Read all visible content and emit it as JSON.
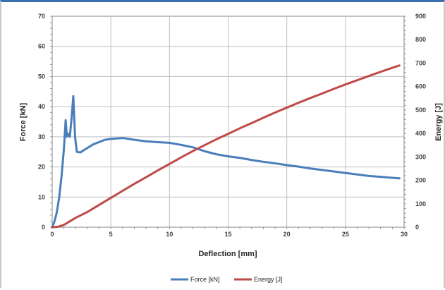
{
  "chart_data": {
    "type": "line",
    "xlabel": "Deflection  [mm]",
    "ylabel_left": "Force  [kN]",
    "ylabel_right": "Energy  [J]",
    "xlim": [
      0,
      30
    ],
    "ylim_left": [
      0,
      70
    ],
    "ylim_right": [
      0,
      900
    ],
    "x_ticks": [
      "0",
      "5",
      "10",
      "15",
      "20",
      "25",
      "30"
    ],
    "y_left_ticks": [
      "0",
      "10",
      "20",
      "30",
      "40",
      "50",
      "60",
      "70"
    ],
    "y_right_ticks": [
      "0",
      "100",
      "200",
      "300",
      "400",
      "500",
      "600",
      "700",
      "800",
      "900"
    ],
    "grid": true,
    "legend_position": "bottom",
    "series": [
      {
        "name": "Force [kN]",
        "axis": "left",
        "color": "#4a7ebb",
        "points": [
          [
            0,
            0
          ],
          [
            0.2,
            2
          ],
          [
            0.4,
            5
          ],
          [
            0.6,
            10
          ],
          [
            0.8,
            17
          ],
          [
            1.0,
            26
          ],
          [
            1.15,
            35.5
          ],
          [
            1.25,
            30
          ],
          [
            1.35,
            31
          ],
          [
            1.5,
            30
          ],
          [
            1.65,
            36
          ],
          [
            1.8,
            43.5
          ],
          [
            1.95,
            30
          ],
          [
            2.1,
            25
          ],
          [
            2.4,
            24.8
          ],
          [
            2.8,
            25.8
          ],
          [
            3.5,
            27.5
          ],
          [
            4.5,
            29
          ],
          [
            5.0,
            29.3
          ],
          [
            6.0,
            29.6
          ],
          [
            7.0,
            29
          ],
          [
            8.0,
            28.5
          ],
          [
            9.0,
            28.2
          ],
          [
            10.0,
            28
          ],
          [
            11.0,
            27.3
          ],
          [
            12.0,
            26.5
          ],
          [
            13.0,
            25.2
          ],
          [
            14.0,
            24.2
          ],
          [
            15.0,
            23.5
          ],
          [
            16.0,
            23
          ],
          [
            17.0,
            22.3
          ],
          [
            18.0,
            21.7
          ],
          [
            19.0,
            21.2
          ],
          [
            20.0,
            20.6
          ],
          [
            21.0,
            20.1
          ],
          [
            22.0,
            19.5
          ],
          [
            23.0,
            19
          ],
          [
            24.0,
            18.5
          ],
          [
            25.0,
            18
          ],
          [
            26.0,
            17.5
          ],
          [
            27.0,
            17
          ],
          [
            28.0,
            16.7
          ],
          [
            29.0,
            16.4
          ],
          [
            29.6,
            16.2
          ]
        ]
      },
      {
        "name": "Energy [J]",
        "axis": "right",
        "color": "#be4b48",
        "points": [
          [
            0,
            0
          ],
          [
            0.5,
            2
          ],
          [
            1.0,
            10
          ],
          [
            1.5,
            25
          ],
          [
            2.0,
            40
          ],
          [
            3.0,
            65
          ],
          [
            4.0,
            95
          ],
          [
            5.0,
            125
          ],
          [
            6.0,
            155
          ],
          [
            7.0,
            185
          ],
          [
            8.0,
            213
          ],
          [
            9.0,
            242
          ],
          [
            10.0,
            270
          ],
          [
            11.0,
            298
          ],
          [
            12.0,
            325
          ],
          [
            13.0,
            350
          ],
          [
            14.0,
            375
          ],
          [
            15.0,
            398
          ],
          [
            16.0,
            422
          ],
          [
            17.0,
            444
          ],
          [
            18.0,
            467
          ],
          [
            19.0,
            489
          ],
          [
            20.0,
            510
          ],
          [
            21.0,
            531
          ],
          [
            22.0,
            551
          ],
          [
            23.0,
            570
          ],
          [
            24.0,
            590
          ],
          [
            25.0,
            609
          ],
          [
            26.0,
            627
          ],
          [
            27.0,
            645
          ],
          [
            28.0,
            663
          ],
          [
            29.0,
            680
          ],
          [
            29.6,
            690
          ]
        ]
      }
    ]
  }
}
